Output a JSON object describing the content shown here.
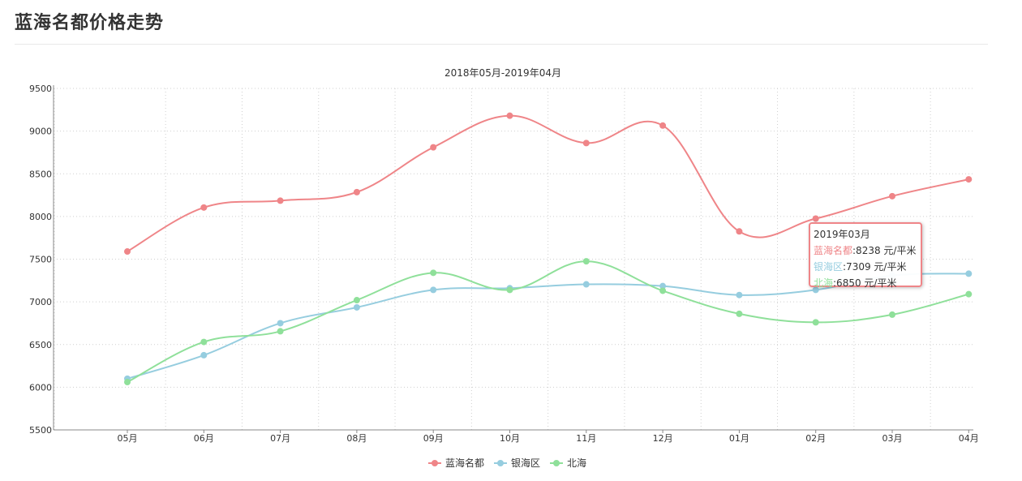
{
  "page": {
    "title": "蓝海名都价格走势"
  },
  "chart_data": {
    "type": "line",
    "title": "2018年05月-2019年04月",
    "categories": [
      "05月",
      "06月",
      "07月",
      "08月",
      "09月",
      "10月",
      "11月",
      "12月",
      "01月",
      "02月",
      "03月",
      "04月"
    ],
    "ylim": [
      5500,
      9500
    ],
    "yticks": [
      "9500",
      "9000",
      "8500",
      "8000",
      "7500",
      "7000",
      "6500",
      "6000",
      "5500"
    ],
    "grid": true,
    "legend_position": "bottom-center",
    "series": [
      {
        "name": "蓝海名都",
        "color": "#ef8588",
        "values": [
          7590,
          8105,
          8185,
          8285,
          8810,
          9180,
          8860,
          9065,
          7825,
          7975,
          8238,
          8435
        ]
      },
      {
        "name": "银海区",
        "color": "#96cddf",
        "values": [
          6100,
          6375,
          6750,
          6935,
          7140,
          7160,
          7205,
          7185,
          7080,
          7140,
          7309,
          7330
        ]
      },
      {
        "name": "北海",
        "color": "#8fe09a",
        "values": [
          6060,
          6530,
          6655,
          7020,
          7340,
          7140,
          7475,
          7130,
          6860,
          6760,
          6850,
          7090
        ]
      }
    ],
    "tooltip": {
      "title": "2019年03月",
      "rows": [
        {
          "label": "蓝海名都",
          "value": ":8238 元/平米"
        },
        {
          "label": "银海区",
          "value": ":7309 元/平米"
        },
        {
          "label": "北海",
          "value": ":6850 元/平米"
        }
      ]
    }
  }
}
